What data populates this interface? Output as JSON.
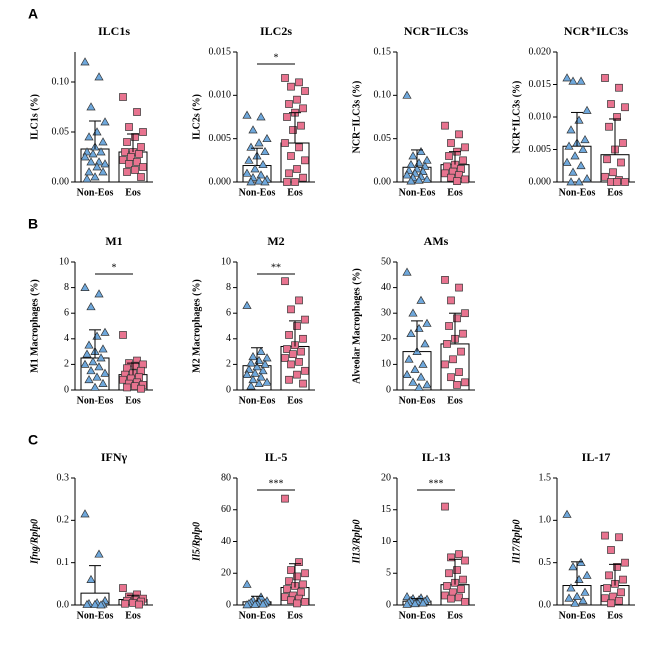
{
  "chart_data": [
    {
      "type": "bar",
      "panel": "A",
      "title": "ILC1s",
      "ylabel": "ILC1s (%)",
      "categories": [
        "Non-Eos",
        "Eos"
      ],
      "ylim": [
        0,
        0.13
      ],
      "yticks": [
        {
          "value": 0,
          "label": "0.00"
        },
        {
          "value": 0.05,
          "label": "0.05"
        },
        {
          "value": 0.1,
          "label": "0.10"
        }
      ],
      "colors": [
        "#6fa8dc",
        "#e8738f"
      ],
      "values": [
        0.033,
        0.03
      ],
      "errors": [
        0.028,
        0.018
      ],
      "points": [
        [
          0.12,
          0.105,
          0.075,
          0.06,
          0.05,
          0.045,
          0.04,
          0.035,
          0.03,
          0.03,
          0.028,
          0.025,
          0.02,
          0.02,
          0.018,
          0.015,
          0.01,
          0.01,
          0.005,
          0.003
        ],
        [
          0.085,
          0.07,
          0.055,
          0.05,
          0.045,
          0.04,
          0.035,
          0.03,
          0.03,
          0.028,
          0.025,
          0.022,
          0.02,
          0.018,
          0.015,
          0.012,
          0.01,
          0.005
        ]
      ]
    },
    {
      "type": "bar",
      "title": "ILC2s",
      "ylabel": "ILC2s (%)",
      "categories": [
        "Non-Eos",
        "Eos"
      ],
      "ylim": [
        0,
        0.015
      ],
      "yticks": [
        {
          "value": 0,
          "label": "0.000"
        },
        {
          "value": 0.005,
          "label": "0.005"
        },
        {
          "value": 0.01,
          "label": "0.010"
        },
        {
          "value": 0.015,
          "label": "0.015"
        }
      ],
      "colors": [
        "#6fa8dc",
        "#e8738f"
      ],
      "values": [
        0.0019,
        0.0045
      ],
      "errors": [
        0.002,
        0.0035
      ],
      "significance": "*",
      "points": [
        [
          0.0077,
          0.0075,
          0.006,
          0.005,
          0.0045,
          0.004,
          0.0035,
          0.003,
          0.0025,
          0.002,
          0.0015,
          0.001,
          0.0008,
          0.0005,
          0.0003,
          0.0001,
          0,
          0
        ],
        [
          0.012,
          0.0115,
          0.011,
          0.0105,
          0.0095,
          0.009,
          0.0085,
          0.008,
          0.0075,
          0.0065,
          0.006,
          0.0045,
          0.004,
          0.003,
          0.0025,
          0.0015,
          0.001,
          0.0005,
          0,
          0
        ]
      ]
    },
    {
      "type": "bar",
      "title": "NCR⁻ILC3s",
      "ylabel": "NCR⁻ILC3s (%)",
      "categories": [
        "Non-Eos",
        "Eos"
      ],
      "ylim": [
        0,
        0.15
      ],
      "yticks": [
        {
          "value": 0,
          "label": "0.00"
        },
        {
          "value": 0.05,
          "label": "0.05"
        },
        {
          "value": 0.1,
          "label": "0.10"
        },
        {
          "value": 0.15,
          "label": "0.15"
        }
      ],
      "colors": [
        "#6fa8dc",
        "#e8738f"
      ],
      "values": [
        0.017,
        0.02
      ],
      "errors": [
        0.02,
        0.015
      ],
      "points": [
        [
          0.1,
          0.035,
          0.03,
          0.025,
          0.022,
          0.02,
          0.018,
          0.015,
          0.013,
          0.012,
          0.01,
          0.008,
          0.006,
          0.005,
          0.003,
          0.002,
          0.001
        ],
        [
          0.065,
          0.055,
          0.045,
          0.04,
          0.035,
          0.03,
          0.025,
          0.02,
          0.018,
          0.015,
          0.012,
          0.01,
          0.008,
          0.005,
          0.003,
          0.001
        ]
      ]
    },
    {
      "type": "bar",
      "title": "NCR⁺ILC3s",
      "ylabel": "NCR⁺ILC3s (%)",
      "categories": [
        "Non-Eos",
        "Eos"
      ],
      "ylim": [
        0,
        0.02
      ],
      "yticks": [
        {
          "value": 0,
          "label": "0.000"
        },
        {
          "value": 0.005,
          "label": "0.005"
        },
        {
          "value": 0.01,
          "label": "0.010"
        },
        {
          "value": 0.015,
          "label": "0.015"
        },
        {
          "value": 0.02,
          "label": "0.020"
        }
      ],
      "colors": [
        "#6fa8dc",
        "#e8738f"
      ],
      "values": [
        0.0055,
        0.0042
      ],
      "errors": [
        0.0052,
        0.0055
      ],
      "points": [
        [
          0.016,
          0.0155,
          0.0155,
          0.011,
          0.0095,
          0.008,
          0.0065,
          0.006,
          0.0055,
          0.005,
          0.004,
          0.003,
          0.0025,
          0.0015,
          0.0005,
          0,
          0
        ],
        [
          0.016,
          0.0145,
          0.012,
          0.0115,
          0.01,
          0.0085,
          0.006,
          0.005,
          0.0035,
          0.003,
          0.0015,
          0.0008,
          0.0003,
          0,
          0,
          0
        ]
      ]
    },
    {
      "type": "bar",
      "panel": "B",
      "title": "M1",
      "ylabel": "M1 Macrophages (%)",
      "categories": [
        "Non-Eos",
        "Eos"
      ],
      "ylim": [
        0,
        10
      ],
      "yticks": [
        0,
        2,
        4,
        6,
        8,
        10
      ],
      "colors": [
        "#6fa8dc",
        "#e8738f"
      ],
      "values": [
        2.5,
        1.2
      ],
      "errors": [
        2.2,
        0.9
      ],
      "significance": "*",
      "points": [
        [
          8,
          7.5,
          6.5,
          4.5,
          4.2,
          3.5,
          3.2,
          3,
          2.8,
          2.5,
          2.2,
          2,
          1.8,
          1.5,
          1.3,
          1,
          0.8,
          0.5,
          0.2
        ],
        [
          4.3,
          2.3,
          2.1,
          2,
          1.9,
          1.7,
          1.5,
          1.3,
          1.2,
          1,
          0.9,
          0.8,
          0.6,
          0.5,
          0.4,
          0.3,
          0.2,
          0.1
        ]
      ]
    },
    {
      "type": "bar",
      "title": "M2",
      "ylabel": "M2 Macrophages (%)",
      "categories": [
        "Non-Eos",
        "Eos"
      ],
      "ylim": [
        0,
        10
      ],
      "yticks": [
        0,
        2,
        4,
        6,
        8,
        10
      ],
      "colors": [
        "#6fa8dc",
        "#e8738f"
      ],
      "values": [
        1.9,
        3.4
      ],
      "errors": [
        1.4,
        2
      ],
      "significance": "**",
      "points": [
        [
          6.6,
          3,
          2.6,
          2.5,
          2.3,
          2.1,
          2,
          1.8,
          1.6,
          1.5,
          1.3,
          1.2,
          1,
          0.8,
          0.6,
          0.5,
          0.3
        ],
        [
          8.5,
          7,
          6.3,
          5.5,
          5,
          4.3,
          4,
          3.5,
          3.2,
          3,
          2.8,
          2.5,
          2.2,
          2,
          1.5,
          1.2,
          0.8,
          0.5
        ]
      ]
    },
    {
      "type": "bar",
      "title": "AMs",
      "ylabel": "Alveolar Macrophages (%)",
      "categories": [
        "Non-Eos",
        "Eos"
      ],
      "ylim": [
        0,
        50
      ],
      "yticks": [
        0,
        10,
        20,
        30,
        40,
        50
      ],
      "colors": [
        "#6fa8dc",
        "#e8738f"
      ],
      "values": [
        15,
        18
      ],
      "errors": [
        12,
        12
      ],
      "points": [
        [
          46,
          35,
          30,
          26,
          24,
          22,
          18,
          15,
          12,
          10,
          8,
          6,
          5,
          3,
          2,
          1
        ],
        [
          43,
          40,
          35,
          30,
          28,
          25,
          22,
          20,
          18,
          15,
          12,
          10,
          7,
          5,
          3,
          2
        ]
      ]
    },
    {
      "type": "bar",
      "panel": "C",
      "title": "IFNγ",
      "ylabel": "Ifng/Rplp0",
      "italic_ylabel": true,
      "categories": [
        "Non-Eos",
        "Eos"
      ],
      "ylim": [
        0,
        0.3
      ],
      "yticks": [
        {
          "value": 0,
          "label": "0.0"
        },
        0.1,
        0.2,
        0.3
      ],
      "colors": [
        "#6fa8dc",
        "#e8738f"
      ],
      "values": [
        0.028,
        0.013
      ],
      "errors": [
        0.065,
        0.01
      ],
      "points": [
        [
          0.215,
          0.12,
          0.06,
          0.01,
          0.005,
          0.003,
          0.002,
          0.001,
          0.001,
          0
        ],
        [
          0.04,
          0.025,
          0.02,
          0.015,
          0.012,
          0.01,
          0.008,
          0.005,
          0.003,
          0.001
        ]
      ]
    },
    {
      "type": "bar",
      "title": "IL-5",
      "ylabel": "Il5/Rplp0",
      "italic_ylabel": true,
      "categories": [
        "Non-Eos",
        "Eos"
      ],
      "ylim": [
        0,
        80
      ],
      "yticks": [
        0,
        20,
        40,
        60,
        80
      ],
      "colors": [
        "#6fa8dc",
        "#e8738f"
      ],
      "values": [
        2,
        11
      ],
      "errors": [
        3.5,
        15
      ],
      "significance": "***",
      "points": [
        [
          13,
          5,
          3,
          2.5,
          2,
          1.5,
          1.2,
          1,
          0.8,
          0.5,
          0.3,
          0.1
        ],
        [
          67,
          27,
          22,
          20,
          18,
          15,
          13,
          12,
          10,
          8,
          6,
          5,
          4,
          3,
          2,
          1
        ]
      ]
    },
    {
      "type": "bar",
      "title": "IL-13",
      "ylabel": "Il13/Rplp0",
      "italic_ylabel": true,
      "categories": [
        "Non-Eos",
        "Eos"
      ],
      "ylim": [
        0,
        20
      ],
      "yticks": [
        0,
        5,
        10,
        15,
        20
      ],
      "colors": [
        "#6fa8dc",
        "#e8738f"
      ],
      "values": [
        0.6,
        3.2
      ],
      "errors": [
        0.4,
        4
      ],
      "significance": "***",
      "points": [
        [
          1.3,
          1.1,
          1,
          0.9,
          0.8,
          0.7,
          0.6,
          0.5,
          0.4,
          0.3,
          0.2,
          0.1
        ],
        [
          15.5,
          8,
          7.5,
          7,
          5.5,
          5,
          4,
          3.5,
          3,
          2.5,
          2,
          1.5,
          1.2,
          1,
          0.5
        ]
      ]
    },
    {
      "type": "bar",
      "title": "IL-17",
      "ylabel": "Il17/Rplp0",
      "italic_ylabel": true,
      "categories": [
        "Non-Eos",
        "Eos"
      ],
      "ylim": [
        0,
        1.5
      ],
      "yticks": [
        {
          "value": 0,
          "label": "0.0"
        },
        0.5,
        {
          "value": 1,
          "label": "1.0"
        },
        1.5
      ],
      "colors": [
        "#6fa8dc",
        "#e8738f"
      ],
      "values": [
        0.23,
        0.23
      ],
      "errors": [
        0.28,
        0.25
      ],
      "points": [
        [
          1.07,
          0.5,
          0.45,
          0.35,
          0.3,
          0.2,
          0.15,
          0.1,
          0.08,
          0.05,
          0.02
        ],
        [
          0.82,
          0.8,
          0.65,
          0.5,
          0.45,
          0.35,
          0.3,
          0.25,
          0.2,
          0.15,
          0.1,
          0.08,
          0.05,
          0.02
        ]
      ]
    }
  ]
}
